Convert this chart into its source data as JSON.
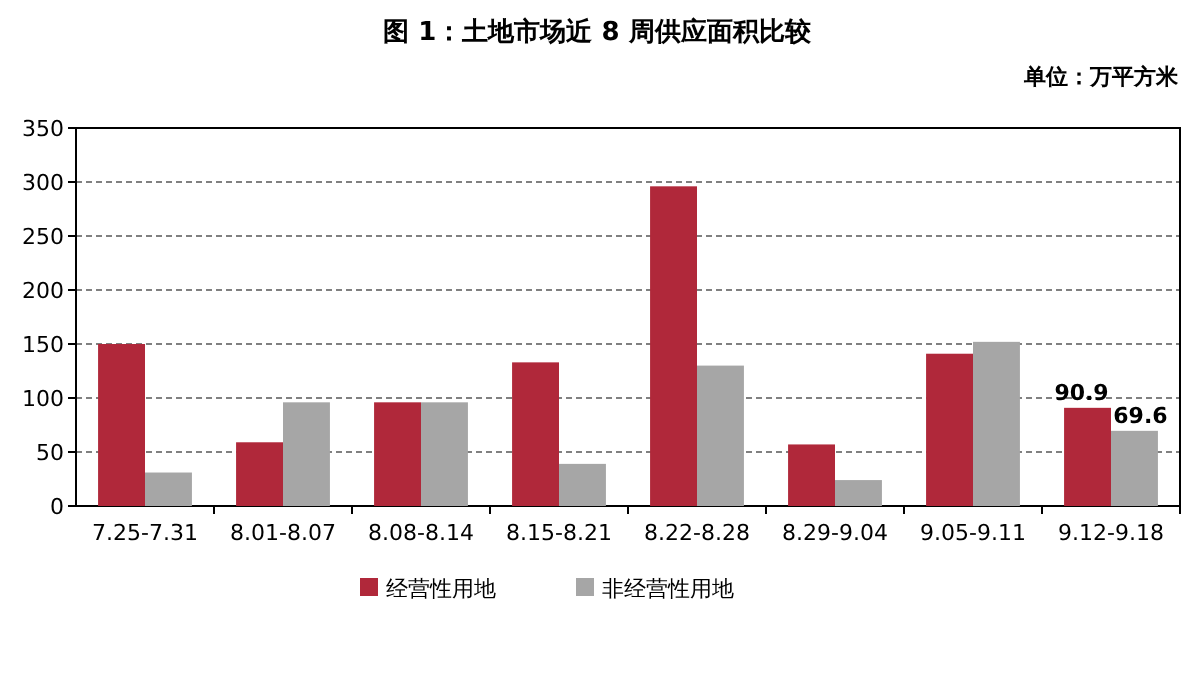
{
  "chart_data": {
    "type": "bar",
    "title": "图 1：土地市场近 8 周供应面积比较",
    "subtitle": "单位：万平方米",
    "categories": [
      "7.25-7.31",
      "8.01-8.07",
      "8.08-8.14",
      "8.15-8.21",
      "8.22-8.28",
      "8.29-9.04",
      "9.05-9.11",
      "9.12-9.18"
    ],
    "series": [
      {
        "name": "经营性用地",
        "color": "#b0283a",
        "values": [
          150,
          59,
          96,
          133,
          296,
          57,
          141,
          90.9
        ],
        "value_labels": [
          null,
          null,
          null,
          null,
          null,
          null,
          null,
          "90.9"
        ]
      },
      {
        "name": "非经营性用地",
        "color": "#a6a6a6",
        "values": [
          31,
          96,
          96,
          39,
          130,
          24,
          152,
          69.6
        ],
        "value_labels": [
          null,
          null,
          null,
          null,
          null,
          null,
          null,
          "69.6"
        ]
      }
    ],
    "ylim": [
      0,
      350
    ],
    "yticks": [
      0,
      50,
      100,
      150,
      200,
      250,
      300,
      350
    ],
    "grid": "y",
    "legend": "bottom"
  }
}
